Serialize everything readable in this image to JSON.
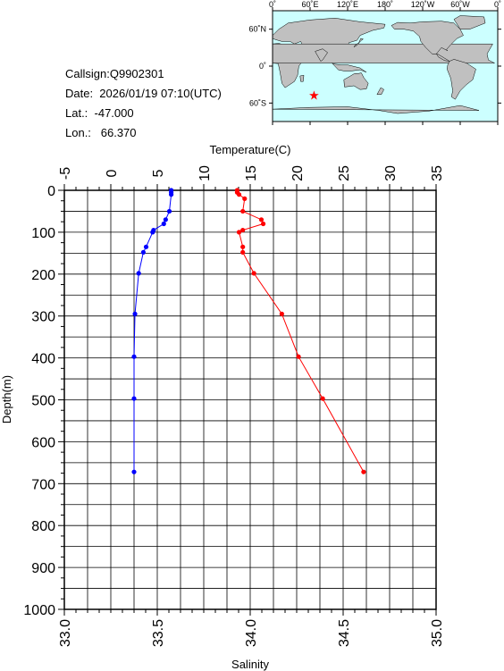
{
  "info": {
    "callsign": "Callsign:Q9902301",
    "date": "Date:  2026/01/19 07:10(UTC)",
    "lat": "Lat.:  -47.000",
    "lon": "Lon.:   66.370"
  },
  "map": {
    "lon_labels": [
      "0˚",
      "60˚E",
      "120˚E",
      "180˚",
      "120˚W",
      "60˚W",
      "0˚"
    ],
    "lat_labels": [
      "60˚N",
      "0˚",
      "60˚S"
    ],
    "ocean_color": "#ccffff",
    "land_color": "#c0c0c0",
    "marker_color": "#ff0000",
    "marker_lat": -47.0,
    "marker_lon": 66.37
  },
  "chart_data": {
    "type": "line",
    "top_axis_label": "Temperature(C)",
    "bottom_axis_label": "Salinity",
    "y_axis_label": "Depth(m)",
    "temperature_range": [
      -5,
      35
    ],
    "salinity_range": [
      33.0,
      35.0
    ],
    "depth_range": [
      0,
      1000
    ],
    "temperature_ticks": [
      "-5",
      "0",
      "5",
      "10",
      "15",
      "20",
      "25",
      "30",
      "35"
    ],
    "salinity_ticks": [
      "33.0",
      "33.5",
      "34.0",
      "34.5",
      "35.0"
    ],
    "depth_ticks": [
      "0",
      "100",
      "200",
      "300",
      "400",
      "500",
      "600",
      "700",
      "800",
      "900",
      "1000"
    ],
    "grid": true,
    "series": [
      {
        "quantity": "temperature",
        "color": "#0000ff",
        "points": [
          {
            "depth": 0,
            "value": 6.5
          },
          {
            "depth": 5,
            "value": 6.5
          },
          {
            "depth": 10,
            "value": 6.5
          },
          {
            "depth": 50,
            "value": 6.3
          },
          {
            "depth": 70,
            "value": 5.9
          },
          {
            "depth": 80,
            "value": 5.7
          },
          {
            "depth": 95,
            "value": 4.6
          },
          {
            "depth": 100,
            "value": 4.5
          },
          {
            "depth": 135,
            "value": 3.8
          },
          {
            "depth": 148,
            "value": 3.5
          },
          {
            "depth": 198,
            "value": 3.0
          },
          {
            "depth": 295,
            "value": 2.6
          },
          {
            "depth": 397,
            "value": 2.5
          },
          {
            "depth": 497,
            "value": 2.5
          },
          {
            "depth": 672,
            "value": 2.5
          }
        ]
      },
      {
        "quantity": "salinity",
        "color": "#ff0000",
        "points": [
          {
            "depth": 0,
            "value": 33.93
          },
          {
            "depth": 5,
            "value": 33.93
          },
          {
            "depth": 10,
            "value": 33.94
          },
          {
            "depth": 20,
            "value": 33.97
          },
          {
            "depth": 50,
            "value": 33.96
          },
          {
            "depth": 70,
            "value": 34.06
          },
          {
            "depth": 80,
            "value": 34.07
          },
          {
            "depth": 95,
            "value": 33.96
          },
          {
            "depth": 100,
            "value": 33.94
          },
          {
            "depth": 135,
            "value": 33.96
          },
          {
            "depth": 148,
            "value": 33.96
          },
          {
            "depth": 198,
            "value": 34.02
          },
          {
            "depth": 295,
            "value": 34.17
          },
          {
            "depth": 397,
            "value": 34.26
          },
          {
            "depth": 497,
            "value": 34.39
          },
          {
            "depth": 672,
            "value": 34.61
          }
        ]
      }
    ]
  }
}
